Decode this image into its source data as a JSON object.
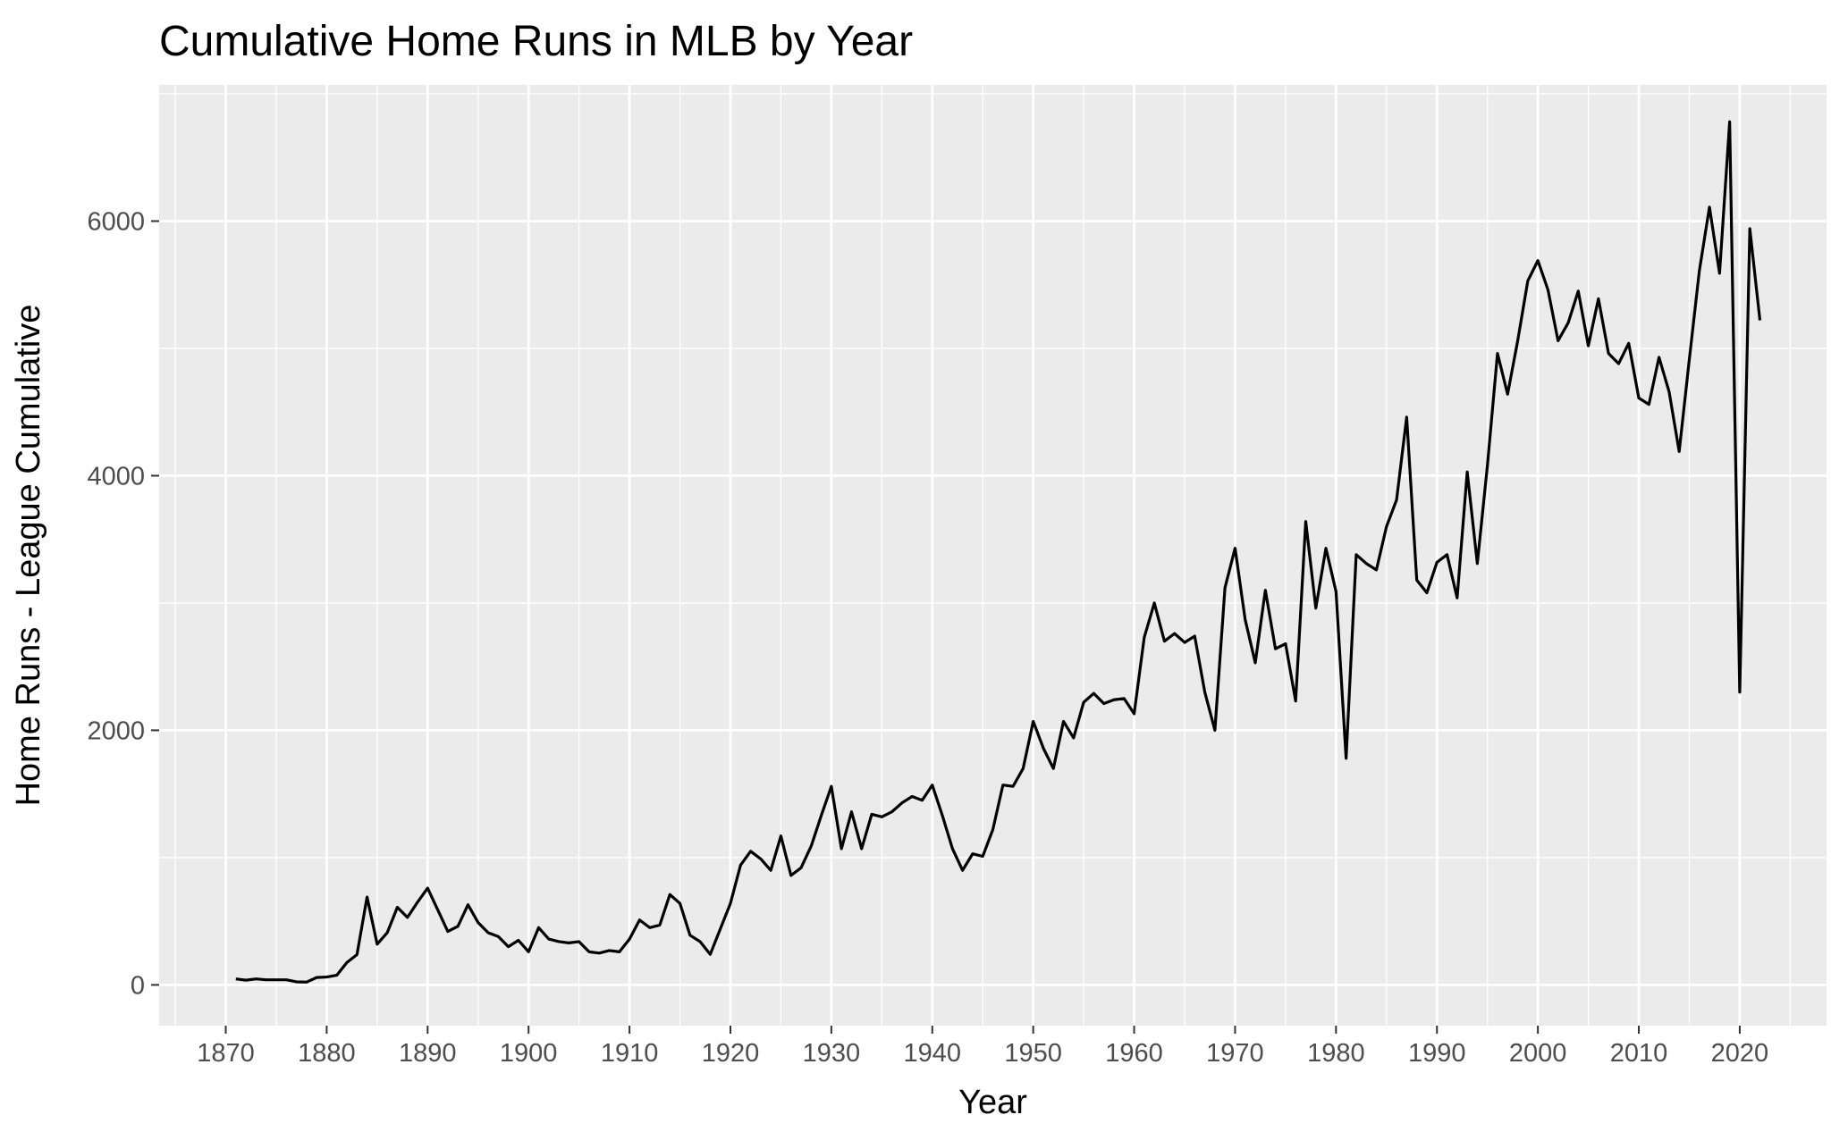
{
  "chart_data": {
    "type": "line",
    "title": "Cumulative Home Runs in MLB by Year",
    "xlabel": "Year",
    "ylabel": "Home Runs - League Cumulative",
    "xlim": [
      1863.4,
      2028.6
    ],
    "ylim": [
      -320,
      7070
    ],
    "x_ticks": [
      1870,
      1880,
      1890,
      1900,
      1910,
      1920,
      1930,
      1940,
      1950,
      1960,
      1970,
      1980,
      1990,
      2000,
      2010,
      2020
    ],
    "x_tick_labels": [
      "1870",
      "1880",
      "1890",
      "1900",
      "1910",
      "1920",
      "1930",
      "1940",
      "1950",
      "1960",
      "1970",
      "1980",
      "1990",
      "2000",
      "2010",
      "2020"
    ],
    "y_ticks": [
      0,
      2000,
      4000,
      6000
    ],
    "y_tick_labels": [
      "0",
      "2000",
      "4000",
      "6000"
    ],
    "grid": true,
    "legend": "none",
    "line_color": "#000000",
    "panel_color": "#ebebeb",
    "x": [
      1871,
      1872,
      1873,
      1874,
      1875,
      1876,
      1877,
      1878,
      1879,
      1880,
      1881,
      1882,
      1883,
      1884,
      1885,
      1886,
      1887,
      1888,
      1889,
      1890,
      1891,
      1892,
      1893,
      1894,
      1895,
      1896,
      1897,
      1898,
      1899,
      1900,
      1901,
      1902,
      1903,
      1904,
      1905,
      1906,
      1907,
      1908,
      1909,
      1910,
      1911,
      1912,
      1913,
      1914,
      1915,
      1916,
      1917,
      1918,
      1919,
      1920,
      1921,
      1922,
      1923,
      1924,
      1925,
      1926,
      1927,
      1928,
      1929,
      1930,
      1931,
      1932,
      1933,
      1934,
      1935,
      1936,
      1937,
      1938,
      1939,
      1940,
      1941,
      1942,
      1943,
      1944,
      1945,
      1946,
      1947,
      1948,
      1949,
      1950,
      1951,
      1952,
      1953,
      1954,
      1955,
      1956,
      1957,
      1958,
      1959,
      1960,
      1961,
      1962,
      1963,
      1964,
      1965,
      1966,
      1967,
      1968,
      1969,
      1970,
      1971,
      1972,
      1973,
      1974,
      1975,
      1976,
      1977,
      1978,
      1979,
      1980,
      1981,
      1982,
      1983,
      1984,
      1985,
      1986,
      1987,
      1988,
      1989,
      1990,
      1991,
      1992,
      1993,
      1994,
      1995,
      1996,
      1997,
      1998,
      1999,
      2000,
      2001,
      2002,
      2003,
      2004,
      2005,
      2006,
      2007,
      2008,
      2009,
      2010,
      2011,
      2012,
      2013,
      2014,
      2015,
      2016,
      2017,
      2018,
      2019,
      2020,
      2021,
      2022
    ],
    "series": [
      {
        "values": [
          47,
          37,
          47,
          40,
          40,
          40,
          24,
          22,
          58,
          62,
          76,
          176,
          238,
          690,
          320,
          410,
          610,
          530,
          650,
          760,
          590,
          420,
          460,
          630,
          490,
          410,
          380,
          300,
          350,
          260,
          450,
          360,
          340,
          330,
          340,
          260,
          250,
          270,
          260,
          360,
          510,
          450,
          470,
          710,
          640,
          390,
          340,
          240,
          440,
          640,
          940,
          1050,
          990,
          900,
          1170,
          860,
          920,
          1090,
          1330,
          1560,
          1070,
          1360,
          1070,
          1340,
          1320,
          1360,
          1430,
          1480,
          1450,
          1570,
          1330,
          1070,
          900,
          1030,
          1010,
          1220,
          1570,
          1560,
          1700,
          2070,
          1860,
          1700,
          2070,
          1940,
          2220,
          2290,
          2210,
          2240,
          2250,
          2130,
          2730,
          3000,
          2700,
          2760,
          2690,
          2740,
          2300,
          2000,
          3120,
          3430,
          2870,
          2530,
          3100,
          2640,
          2680,
          2230,
          3640,
          2960,
          3430,
          3090,
          1780,
          3380,
          3310,
          3260,
          3600,
          3810,
          4460,
          3180,
          3080,
          3320,
          3380,
          3040,
          4030,
          3310,
          4080,
          4960,
          4640,
          5060,
          5530,
          5690,
          5460,
          5060,
          5200,
          5450,
          5020,
          5390,
          4960,
          4880,
          5040,
          4610,
          4560,
          4930,
          4660,
          4190,
          4910,
          5610,
          6110,
          5590,
          6780,
          2300,
          5940,
          5220
        ]
      }
    ]
  }
}
